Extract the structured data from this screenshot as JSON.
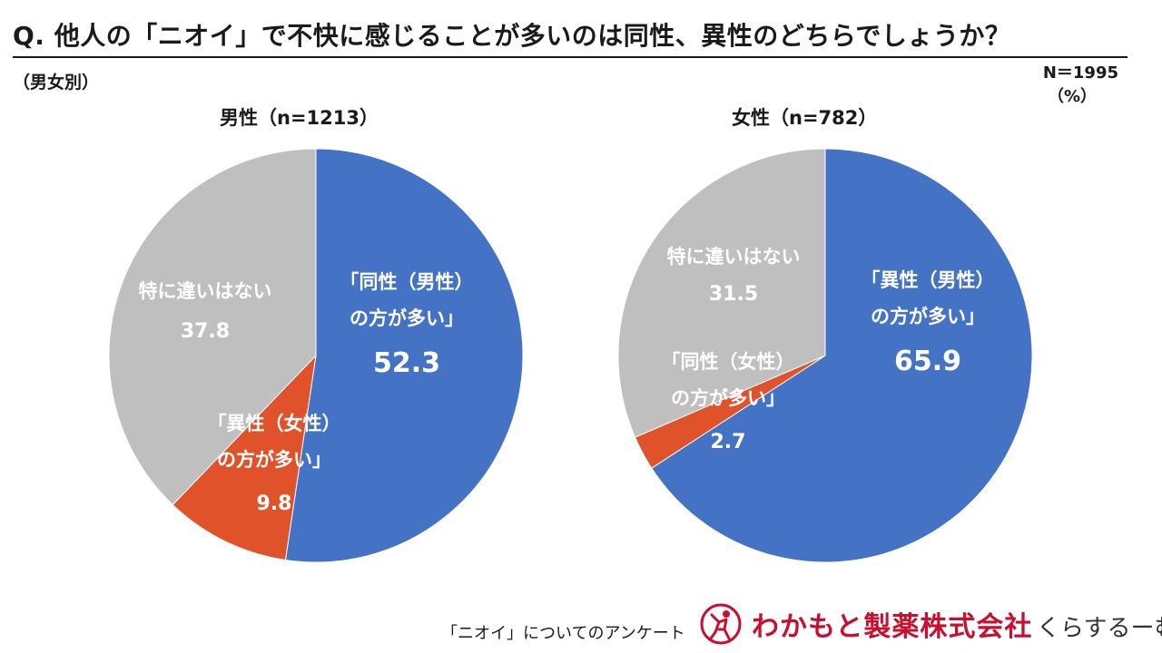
{
  "header": {
    "title": "Q. 他人の「ニオイ」で不快に感じることが多いのは同性、異性のどちらでしょうか？",
    "subtitle": "（男女別）",
    "n_total": "N＝1995",
    "unit": "（%）"
  },
  "colors": {
    "blue": "#4472c4",
    "orange": "#e0522a",
    "gray": "#bfbfbf"
  },
  "chart_data": [
    {
      "type": "pie",
      "title": "男性（n=1213）",
      "slices": [
        {
          "name": "same",
          "label_lines": [
            "「同性（男性）",
            "の方が多い」"
          ],
          "value": 52.3,
          "value_text": "52.3",
          "color": "#4472c4"
        },
        {
          "name": "opposite",
          "label_lines": [
            "「異性（女性）",
            "の方が多い」"
          ],
          "value": 9.8,
          "value_text": "9.8",
          "color": "#e0522a"
        },
        {
          "name": "none",
          "label_lines": [
            "特に違いはない"
          ],
          "value": 37.8,
          "value_text": "37.8",
          "color": "#bfbfbf"
        }
      ]
    },
    {
      "type": "pie",
      "title": "女性（n=782）",
      "slices": [
        {
          "name": "opposite",
          "label_lines": [
            "「異性（男性）",
            "の方が多い」"
          ],
          "value": 65.9,
          "value_text": "65.9",
          "color": "#4472c4"
        },
        {
          "name": "same",
          "label_lines": [
            "「同性（女性）",
            "の方が多い」"
          ],
          "value": 2.7,
          "value_text": "2.7",
          "color": "#e0522a"
        },
        {
          "name": "none",
          "label_lines": [
            "特に違いはない"
          ],
          "value": 31.5,
          "value_text": "31.5",
          "color": "#bfbfbf"
        }
      ]
    }
  ],
  "footer": {
    "note": "「ニオイ」についてのアンケート",
    "brand": "わかもと製薬株式会社",
    "subbrand": "くらするーむ"
  }
}
